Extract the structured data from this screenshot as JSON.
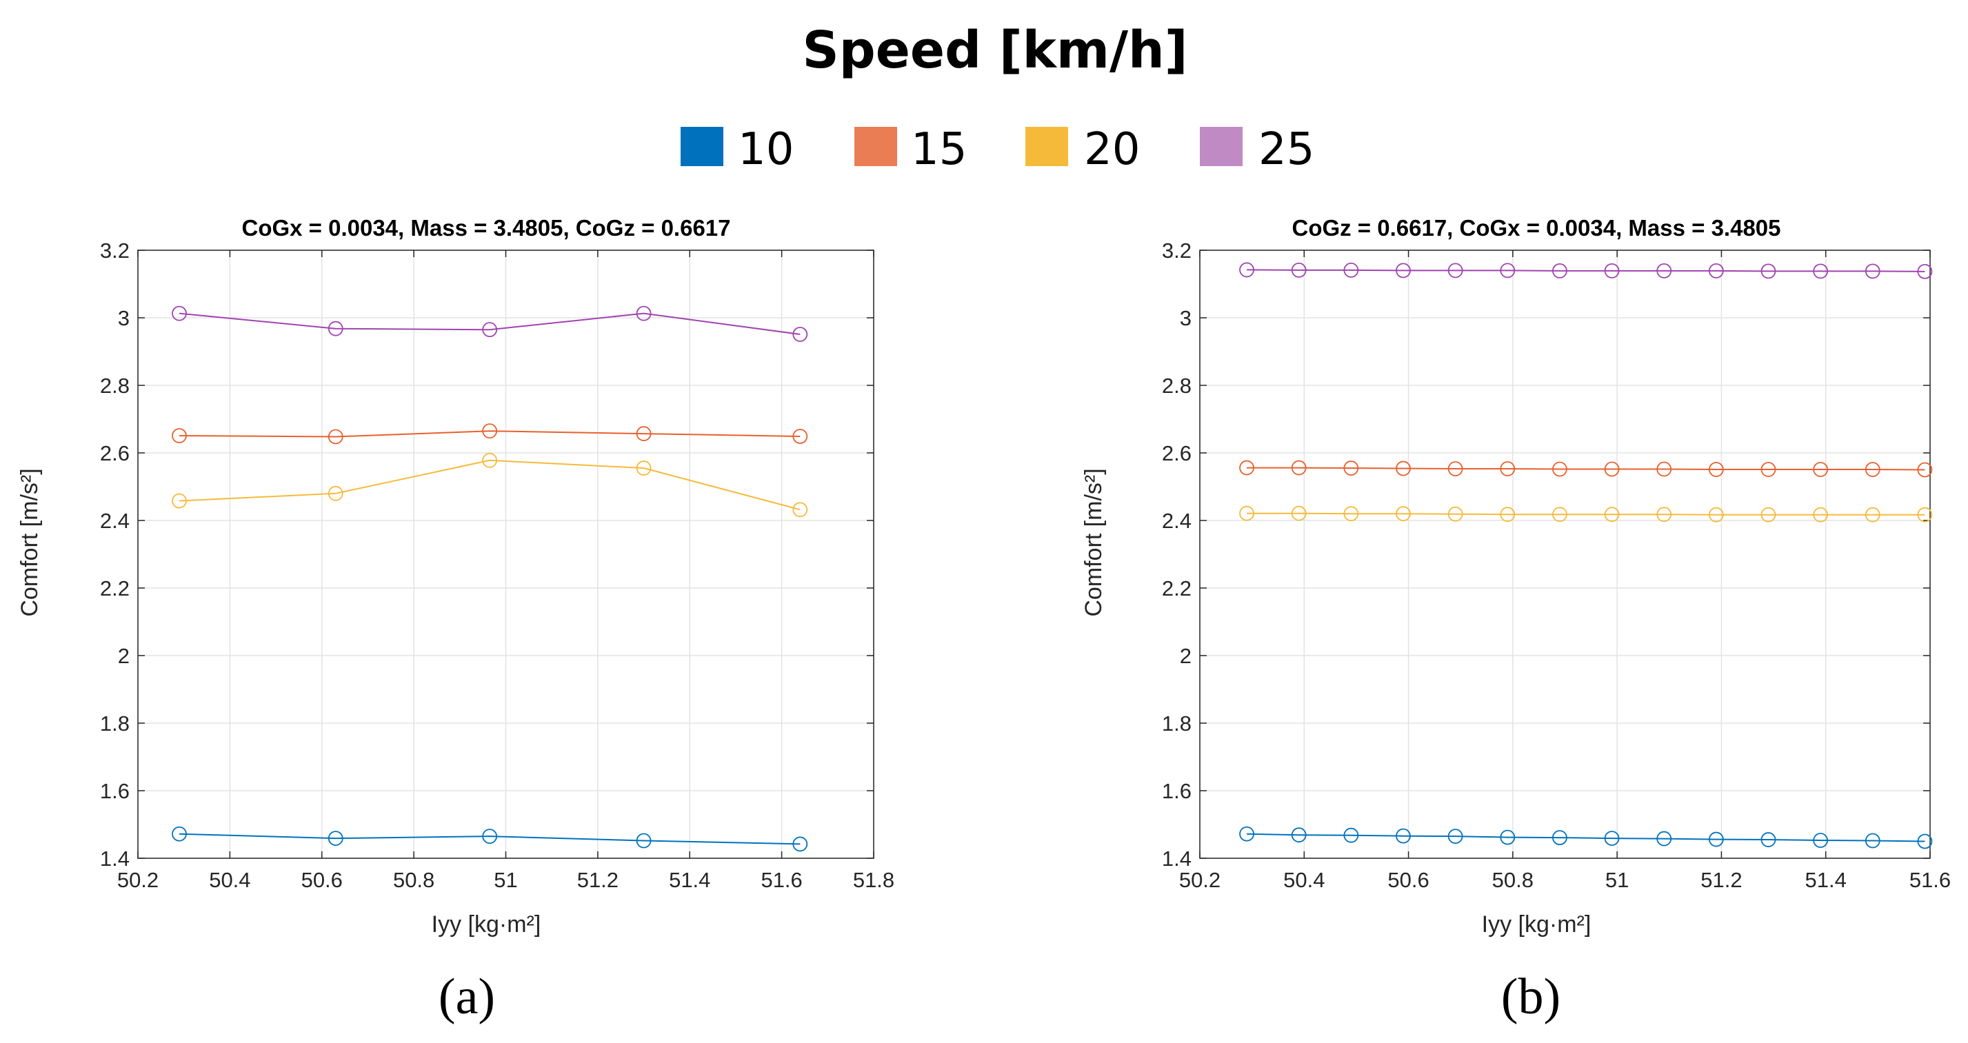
{
  "legend": {
    "title": "Speed [km/h]",
    "entries": [
      {
        "label": "10",
        "color": "#0072bd"
      },
      {
        "label": "15",
        "color": "#ea7d54"
      },
      {
        "label": "20",
        "color": "#f6ba3a"
      },
      {
        "label": "25",
        "color": "#c08ac4"
      }
    ]
  },
  "chart_data": [
    {
      "type": "line",
      "panel_label": "(a)",
      "title": "CoGx = 0.0034, Mass = 3.4805,  CoGz = 0.6617",
      "xlabel": "Iyy [kg·m²]",
      "ylabel": "Comfort [m/s²]",
      "xlim": [
        50.2,
        51.8
      ],
      "ylim": [
        1.4,
        3.2
      ],
      "xticks": [
        "50.2",
        "50.4",
        "50.6",
        "50.8",
        "51",
        "51.2",
        "51.4",
        "51.6",
        "51.8"
      ],
      "yticks": [
        "1.4",
        "1.6",
        "1.8",
        "2",
        "2.2",
        "2.4",
        "2.6",
        "2.8",
        "3",
        "3.2"
      ],
      "grid": true,
      "marker": "circle",
      "x": [
        50.29,
        50.63,
        50.965,
        51.3,
        51.64
      ],
      "series": [
        {
          "name": "10",
          "color": "#0072bd",
          "values": [
            1.472,
            1.459,
            1.465,
            1.452,
            1.442
          ]
        },
        {
          "name": "15",
          "color": "#e8602c",
          "values": [
            2.651,
            2.648,
            2.665,
            2.657,
            2.649
          ]
        },
        {
          "name": "20",
          "color": "#f6ba3a",
          "values": [
            2.458,
            2.48,
            2.578,
            2.555,
            2.432
          ]
        },
        {
          "name": "25",
          "color": "#a043b0",
          "values": [
            3.013,
            2.968,
            2.965,
            3.013,
            2.951
          ]
        }
      ]
    },
    {
      "type": "line",
      "panel_label": "(b)",
      "title": "CoGz = 0.6617, CoGx = 0.0034,  Mass = 3.4805",
      "xlabel": "Iyy [kg·m²]",
      "ylabel": "Comfort [m/s²]",
      "xlim": [
        50.2,
        51.6
      ],
      "ylim": [
        1.4,
        3.2
      ],
      "xticks": [
        "50.2",
        "50.4",
        "50.6",
        "50.8",
        "51",
        "51.2",
        "51.4",
        "51.6"
      ],
      "yticks": [
        "1.4",
        "1.6",
        "1.8",
        "2",
        "2.2",
        "2.4",
        "2.6",
        "2.8",
        "3",
        "3.2"
      ],
      "grid": true,
      "marker": "circle",
      "x": [
        50.29,
        50.39,
        50.49,
        50.59,
        50.69,
        50.79,
        50.89,
        50.99,
        51.09,
        51.19,
        51.29,
        51.39,
        51.49,
        51.59
      ],
      "series": [
        {
          "name": "10",
          "color": "#0072bd",
          "values": [
            1.472,
            1.469,
            1.468,
            1.466,
            1.465,
            1.462,
            1.461,
            1.459,
            1.458,
            1.456,
            1.455,
            1.453,
            1.452,
            1.45
          ]
        },
        {
          "name": "15",
          "color": "#e8602c",
          "values": [
            2.556,
            2.556,
            2.555,
            2.554,
            2.553,
            2.553,
            2.552,
            2.552,
            2.552,
            2.551,
            2.551,
            2.551,
            2.551,
            2.55
          ]
        },
        {
          "name": "20",
          "color": "#f6ba3a",
          "values": [
            2.421,
            2.421,
            2.42,
            2.42,
            2.419,
            2.418,
            2.418,
            2.418,
            2.418,
            2.417,
            2.417,
            2.417,
            2.417,
            2.417
          ]
        },
        {
          "name": "25",
          "color": "#a043b0",
          "values": [
            3.142,
            3.141,
            3.141,
            3.14,
            3.14,
            3.14,
            3.139,
            3.139,
            3.139,
            3.139,
            3.138,
            3.138,
            3.138,
            3.137
          ]
        }
      ]
    }
  ]
}
